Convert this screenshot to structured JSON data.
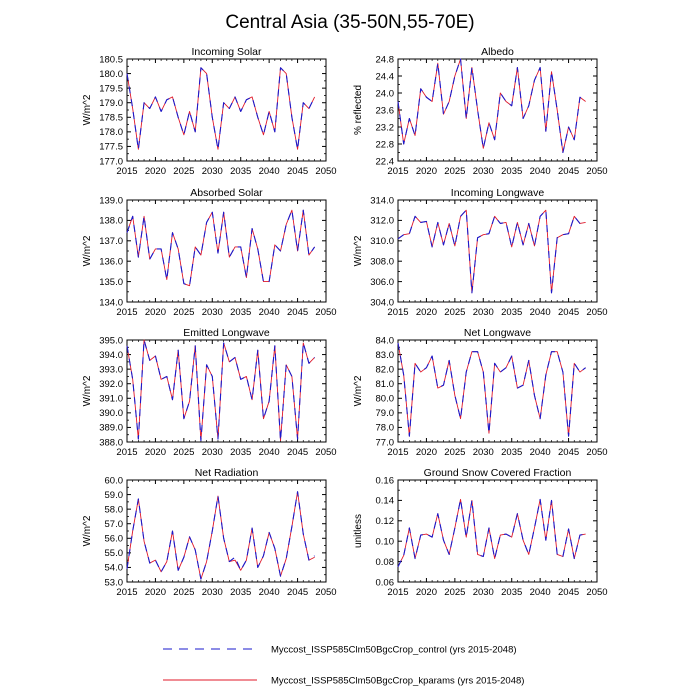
{
  "chart_data": {
    "type": "line",
    "title": "Central Asia (35-50N,55-70E)",
    "x": [
      2015,
      2016,
      2017,
      2018,
      2019,
      2020,
      2021,
      2022,
      2023,
      2024,
      2025,
      2026,
      2027,
      2028,
      2029,
      2030,
      2031,
      2032,
      2033,
      2034,
      2035,
      2036,
      2037,
      2038,
      2039,
      2040,
      2041,
      2042,
      2043,
      2044,
      2045,
      2046,
      2047,
      2048
    ],
    "xlim": [
      2015,
      2050
    ],
    "xticks": [
      2015,
      2020,
      2025,
      2030,
      2035,
      2040,
      2045,
      2050
    ],
    "legend": {
      "position": "bottom",
      "entries": [
        {
          "label": "Myccost_ISSP585Clm50BgcCrop_control (yrs 2015-2048)",
          "color": "#1a1acc",
          "dash": "dashed"
        },
        {
          "label": "Myccost_ISSP585Clm50BgcCrop_kparams (yrs 2015-2048)",
          "color": "#e0192a",
          "dash": "solid"
        }
      ]
    },
    "panels": [
      {
        "title": "Incoming Solar",
        "ylabel": "W/m^2",
        "ylim": [
          177.0,
          180.5
        ],
        "yticks": [
          "177.0",
          "177.5",
          "178.0",
          "178.5",
          "179.0",
          "179.5",
          "180.0",
          "180.5"
        ],
        "series": [
          {
            "name": "control",
            "values": [
              180.0,
              178.8,
              177.4,
              179.0,
              178.8,
              179.2,
              178.7,
              179.1,
              179.2,
              178.5,
              177.9,
              178.7,
              178.0,
              180.2,
              180.0,
              178.5,
              177.4,
              179.0,
              178.8,
              179.2,
              178.7,
              179.1,
              179.2,
              178.5,
              177.9,
              178.7,
              178.0,
              180.2,
              180.0,
              178.5,
              177.4,
              179.0,
              178.8,
              179.2
            ]
          },
          {
            "name": "kparams",
            "values": [
              180.0,
              178.8,
              177.4,
              179.0,
              178.8,
              179.2,
              178.7,
              179.1,
              179.2,
              178.5,
              177.9,
              178.7,
              178.0,
              180.2,
              180.0,
              178.5,
              177.4,
              179.0,
              178.8,
              179.2,
              178.7,
              179.1,
              179.2,
              178.5,
              177.9,
              178.7,
              178.0,
              180.2,
              180.0,
              178.5,
              177.4,
              179.0,
              178.8,
              179.2
            ]
          }
        ]
      },
      {
        "title": "Albedo",
        "ylabel": "% reflected",
        "ylim": [
          22.4,
          24.8
        ],
        "yticks": [
          "22.4",
          "22.8",
          "23.2",
          "23.6",
          "24.0",
          "24.4",
          "24.8"
        ],
        "series": [
          {
            "name": "control",
            "values": [
              23.8,
              22.8,
              23.4,
              23.0,
              24.1,
              23.9,
              23.8,
              24.7,
              23.5,
              23.8,
              24.4,
              24.8,
              23.4,
              24.6,
              23.6,
              22.7,
              23.3,
              22.9,
              24.0,
              23.8,
              23.7,
              24.6,
              23.4,
              23.7,
              24.3,
              24.6,
              23.1,
              24.5,
              23.6,
              22.6,
              23.2,
              22.9,
              23.9,
              23.8
            ]
          },
          {
            "name": "kparams",
            "values": [
              23.8,
              22.8,
              23.4,
              23.0,
              24.1,
              23.9,
              23.8,
              24.7,
              23.5,
              23.8,
              24.4,
              24.8,
              23.4,
              24.6,
              23.6,
              22.7,
              23.3,
              22.9,
              24.0,
              23.8,
              23.7,
              24.6,
              23.4,
              23.7,
              24.3,
              24.6,
              23.1,
              24.5,
              23.6,
              22.6,
              23.2,
              22.9,
              23.9,
              23.8
            ]
          }
        ]
      },
      {
        "title": "Absorbed Solar",
        "ylabel": "W/m^2",
        "ylim": [
          134.0,
          139.0
        ],
        "yticks": [
          "134.0",
          "135.0",
          "136.0",
          "137.0",
          "138.0",
          "139.0"
        ],
        "series": [
          {
            "name": "control",
            "values": [
              137.4,
              138.2,
              136.2,
              138.2,
              136.1,
              136.6,
              136.6,
              135.1,
              137.4,
              136.6,
              134.9,
              134.8,
              136.7,
              136.3,
              137.9,
              138.4,
              136.4,
              138.4,
              136.2,
              136.7,
              136.7,
              135.2,
              137.6,
              136.6,
              135.0,
              135.0,
              136.8,
              136.5,
              137.8,
              138.5,
              136.5,
              138.5,
              136.3,
              136.7
            ]
          },
          {
            "name": "kparams",
            "values": [
              137.4,
              138.2,
              136.2,
              138.2,
              136.1,
              136.6,
              136.6,
              135.1,
              137.4,
              136.6,
              134.9,
              134.8,
              136.7,
              136.3,
              137.9,
              138.4,
              136.4,
              138.4,
              136.2,
              136.7,
              136.7,
              135.2,
              137.6,
              136.6,
              135.0,
              135.0,
              136.8,
              136.5,
              137.8,
              138.5,
              136.5,
              138.5,
              136.3,
              136.7
            ]
          }
        ]
      },
      {
        "title": "Incoming Longwave",
        "ylabel": "W/m^2",
        "ylim": [
          304.0,
          314.0
        ],
        "yticks": [
          "304.0",
          "306.0",
          "308.0",
          "310.0",
          "312.0",
          "314.0"
        ],
        "series": [
          {
            "name": "control",
            "values": [
              310.2,
              310.6,
              310.7,
              312.4,
              311.8,
              311.9,
              309.4,
              311.8,
              309.6,
              311.7,
              309.5,
              312.4,
              313.0,
              304.9,
              310.3,
              310.6,
              310.7,
              312.4,
              311.7,
              311.8,
              309.4,
              311.8,
              309.6,
              311.7,
              309.5,
              312.4,
              313.0,
              304.9,
              310.3,
              310.6,
              310.7,
              312.4,
              311.7,
              311.8
            ]
          },
          {
            "name": "kparams",
            "values": [
              310.2,
              310.6,
              310.7,
              312.4,
              311.8,
              311.9,
              309.4,
              311.8,
              309.6,
              311.7,
              309.5,
              312.4,
              313.0,
              304.9,
              310.3,
              310.6,
              310.7,
              312.4,
              311.7,
              311.8,
              309.4,
              311.8,
              309.6,
              311.7,
              309.5,
              312.4,
              313.0,
              304.9,
              310.3,
              310.6,
              310.7,
              312.4,
              311.7,
              311.8
            ]
          }
        ]
      },
      {
        "title": "Emitted Longwave",
        "ylabel": "W/m^2",
        "ylim": [
          388.0,
          395.0
        ],
        "yticks": [
          "388.0",
          "389.0",
          "390.0",
          "391.0",
          "392.0",
          "393.0",
          "394.0",
          "395.0"
        ],
        "series": [
          {
            "name": "control",
            "values": [
              394.6,
              392.3,
              388.2,
              395.0,
              393.6,
              393.9,
              392.3,
              392.5,
              390.9,
              394.3,
              389.6,
              390.8,
              394.6,
              388.1,
              393.3,
              392.5,
              388.2,
              394.8,
              393.5,
              393.8,
              392.3,
              392.5,
              390.9,
              394.3,
              389.6,
              390.8,
              394.6,
              388.1,
              393.3,
              392.5,
              388.2,
              394.8,
              393.4,
              393.8
            ]
          },
          {
            "name": "kparams",
            "values": [
              394.6,
              392.3,
              388.2,
              395.0,
              393.6,
              393.9,
              392.3,
              392.5,
              390.9,
              394.3,
              389.6,
              390.8,
              394.6,
              388.1,
              393.3,
              392.5,
              388.2,
              394.8,
              393.5,
              393.8,
              392.3,
              392.5,
              390.9,
              394.3,
              389.6,
              390.8,
              394.6,
              388.1,
              393.3,
              392.5,
              388.2,
              394.8,
              393.4,
              393.8
            ]
          }
        ]
      },
      {
        "title": "Net Longwave",
        "ylabel": "W/m^2",
        "ylim": [
          77.0,
          84.0
        ],
        "yticks": [
          "77.0",
          "78.0",
          "79.0",
          "80.0",
          "81.0",
          "82.0",
          "83.0",
          "84.0"
        ],
        "series": [
          {
            "name": "control",
            "values": [
              83.8,
              81.6,
              77.4,
              82.4,
              81.8,
              82.1,
              82.9,
              80.7,
              80.9,
              82.6,
              80.2,
              78.6,
              81.8,
              83.2,
              83.2,
              81.8,
              77.6,
              82.4,
              81.8,
              82.1,
              82.9,
              80.7,
              80.9,
              82.6,
              80.2,
              78.6,
              81.6,
              83.2,
              83.2,
              81.8,
              77.4,
              82.4,
              81.8,
              82.1
            ]
          },
          {
            "name": "kparams",
            "values": [
              83.8,
              81.6,
              77.4,
              82.4,
              81.8,
              82.1,
              82.9,
              80.7,
              80.9,
              82.6,
              80.2,
              78.6,
              81.8,
              83.2,
              83.2,
              81.8,
              77.6,
              82.4,
              81.8,
              82.1,
              82.9,
              80.7,
              80.9,
              82.6,
              80.2,
              78.6,
              81.6,
              83.2,
              83.2,
              81.8,
              77.4,
              82.4,
              81.8,
              82.1
            ]
          }
        ]
      },
      {
        "title": "Net Radiation",
        "ylabel": "W/m^2",
        "ylim": [
          53.0,
          60.0
        ],
        "yticks": [
          "53.0",
          "54.0",
          "55.0",
          "56.0",
          "57.0",
          "58.0",
          "59.0",
          "60.0"
        ],
        "series": [
          {
            "name": "control",
            "values": [
              53.9,
              56.5,
              58.7,
              55.8,
              54.3,
              54.5,
              53.7,
              54.4,
              56.5,
              53.8,
              54.7,
              56.1,
              55.2,
              53.2,
              54.4,
              56.5,
              58.9,
              56.0,
              54.4,
              54.7,
              53.8,
              54.5,
              56.7,
              54.0,
              54.8,
              56.4,
              55.3,
              53.4,
              54.6,
              56.8,
              59.2,
              56.3,
              54.5,
              54.8
            ]
          },
          {
            "name": "kparams",
            "values": [
              53.9,
              56.5,
              58.7,
              55.8,
              54.3,
              54.5,
              53.7,
              54.4,
              56.5,
              53.8,
              54.7,
              56.1,
              55.2,
              53.2,
              54.4,
              56.5,
              58.9,
              56.0,
              54.4,
              54.5,
              53.8,
              54.5,
              56.7,
              54.0,
              54.8,
              56.4,
              55.3,
              53.4,
              54.6,
              56.8,
              59.2,
              56.3,
              54.5,
              54.7
            ]
          }
        ]
      },
      {
        "title": "Ground Snow Covered Fraction",
        "ylabel": "unitless",
        "ylim": [
          0.06,
          0.16
        ],
        "yticks": [
          "0.06",
          "0.08",
          "0.10",
          "0.12",
          "0.14",
          "0.16"
        ],
        "series": [
          {
            "name": "control",
            "values": [
              0.075,
              0.086,
              0.113,
              0.083,
              0.106,
              0.107,
              0.104,
              0.127,
              0.101,
              0.087,
              0.113,
              0.141,
              0.104,
              0.14,
              0.087,
              0.085,
              0.113,
              0.083,
              0.106,
              0.107,
              0.104,
              0.127,
              0.101,
              0.087,
              0.113,
              0.141,
              0.101,
              0.14,
              0.087,
              0.085,
              0.112,
              0.083,
              0.106,
              0.107
            ]
          },
          {
            "name": "kparams",
            "values": [
              0.075,
              0.086,
              0.113,
              0.083,
              0.106,
              0.107,
              0.104,
              0.127,
              0.101,
              0.087,
              0.113,
              0.141,
              0.104,
              0.14,
              0.087,
              0.085,
              0.113,
              0.083,
              0.106,
              0.107,
              0.104,
              0.127,
              0.101,
              0.087,
              0.113,
              0.141,
              0.101,
              0.14,
              0.087,
              0.085,
              0.112,
              0.083,
              0.106,
              0.107
            ]
          }
        ]
      }
    ]
  }
}
